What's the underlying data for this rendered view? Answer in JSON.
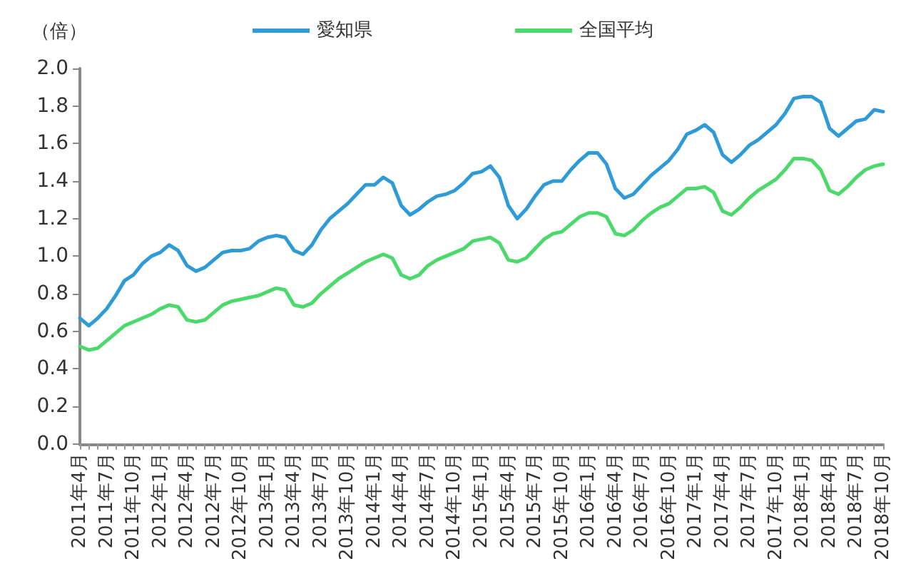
{
  "chart_data": {
    "type": "line",
    "ylabel": "（倍）",
    "legend": "top",
    "grid": false,
    "marker": "none",
    "line_style": "solid",
    "categories": [
      "2011年4月",
      null,
      null,
      "2011年7月",
      null,
      null,
      "2011年10月",
      null,
      null,
      "2012年1月",
      null,
      null,
      "2012年4月",
      null,
      null,
      "2012年7月",
      null,
      null,
      "2012年10月",
      null,
      null,
      "2013年1月",
      null,
      null,
      "2013年4月",
      null,
      null,
      "2013年7月",
      null,
      null,
      "2013年10月",
      null,
      null,
      "2014年1月",
      null,
      null,
      "2014年4月",
      null,
      null,
      "2014年7月",
      null,
      null,
      "2014年10月",
      null,
      null,
      "2015年1月",
      null,
      null,
      "2015年4月",
      null,
      null,
      "2015年7月",
      null,
      null,
      "2015年10月",
      null,
      null,
      "2016年1月",
      null,
      null,
      "2016年4月",
      null,
      null,
      "2016年7月",
      null,
      null,
      "2016年10月",
      null,
      null,
      "2017年1月",
      null,
      null,
      "2017年4月",
      null,
      null,
      "2017年7月",
      null,
      null,
      "2017年10月",
      null,
      null,
      "2018年1月",
      null,
      null,
      "2018年4月",
      null,
      null,
      "2018年7月",
      null,
      null,
      "2018年10月"
    ],
    "ylim": [
      0,
      2
    ],
    "yticks": [
      {
        "value": 0,
        "label": "0.0"
      },
      0.2,
      0.4,
      0.6,
      0.8,
      {
        "value": 1,
        "label": "1.0"
      },
      1.2,
      1.4,
      1.6,
      1.8,
      {
        "value": 2,
        "label": "2.0"
      }
    ],
    "series": [
      {
        "name": "愛知県",
        "color": "#2e9bd6",
        "values": [
          0.67,
          0.63,
          0.67,
          0.72,
          0.79,
          0.87,
          0.9,
          0.96,
          1.0,
          1.02,
          1.06,
          1.03,
          0.95,
          0.92,
          0.94,
          0.98,
          1.02,
          1.03,
          1.03,
          1.04,
          1.08,
          1.1,
          1.11,
          1.1,
          1.03,
          1.01,
          1.06,
          1.14,
          1.2,
          1.24,
          1.28,
          1.33,
          1.38,
          1.38,
          1.42,
          1.39,
          1.27,
          1.22,
          1.25,
          1.29,
          1.32,
          1.33,
          1.35,
          1.39,
          1.44,
          1.45,
          1.48,
          1.42,
          1.27,
          1.2,
          1.25,
          1.32,
          1.38,
          1.4,
          1.4,
          1.46,
          1.51,
          1.55,
          1.55,
          1.49,
          1.36,
          1.31,
          1.33,
          1.38,
          1.43,
          1.47,
          1.51,
          1.57,
          1.65,
          1.67,
          1.7,
          1.66,
          1.54,
          1.5,
          1.54,
          1.59,
          1.62,
          1.66,
          1.7,
          1.76,
          1.84,
          1.85,
          1.85,
          1.82,
          1.68,
          1.64,
          1.68,
          1.72,
          1.73,
          1.78,
          1.77
        ]
      },
      {
        "name": "全国平均",
        "color": "#4cd96c",
        "values": [
          0.52,
          0.5,
          0.51,
          0.55,
          0.59,
          0.63,
          0.65,
          0.67,
          0.69,
          0.72,
          0.74,
          0.73,
          0.66,
          0.65,
          0.66,
          0.7,
          0.74,
          0.76,
          0.77,
          0.78,
          0.79,
          0.81,
          0.83,
          0.82,
          0.74,
          0.73,
          0.75,
          0.8,
          0.84,
          0.88,
          0.91,
          0.94,
          0.97,
          0.99,
          1.01,
          0.99,
          0.9,
          0.88,
          0.9,
          0.95,
          0.98,
          1.0,
          1.02,
          1.04,
          1.08,
          1.09,
          1.1,
          1.07,
          0.98,
          0.97,
          0.99,
          1.04,
          1.09,
          1.12,
          1.13,
          1.17,
          1.21,
          1.23,
          1.23,
          1.21,
          1.12,
          1.11,
          1.14,
          1.19,
          1.23,
          1.26,
          1.28,
          1.32,
          1.36,
          1.36,
          1.37,
          1.34,
          1.24,
          1.22,
          1.26,
          1.31,
          1.35,
          1.38,
          1.41,
          1.46,
          1.52,
          1.52,
          1.51,
          1.46,
          1.35,
          1.33,
          1.37,
          1.42,
          1.46,
          1.48,
          1.49
        ]
      }
    ]
  }
}
